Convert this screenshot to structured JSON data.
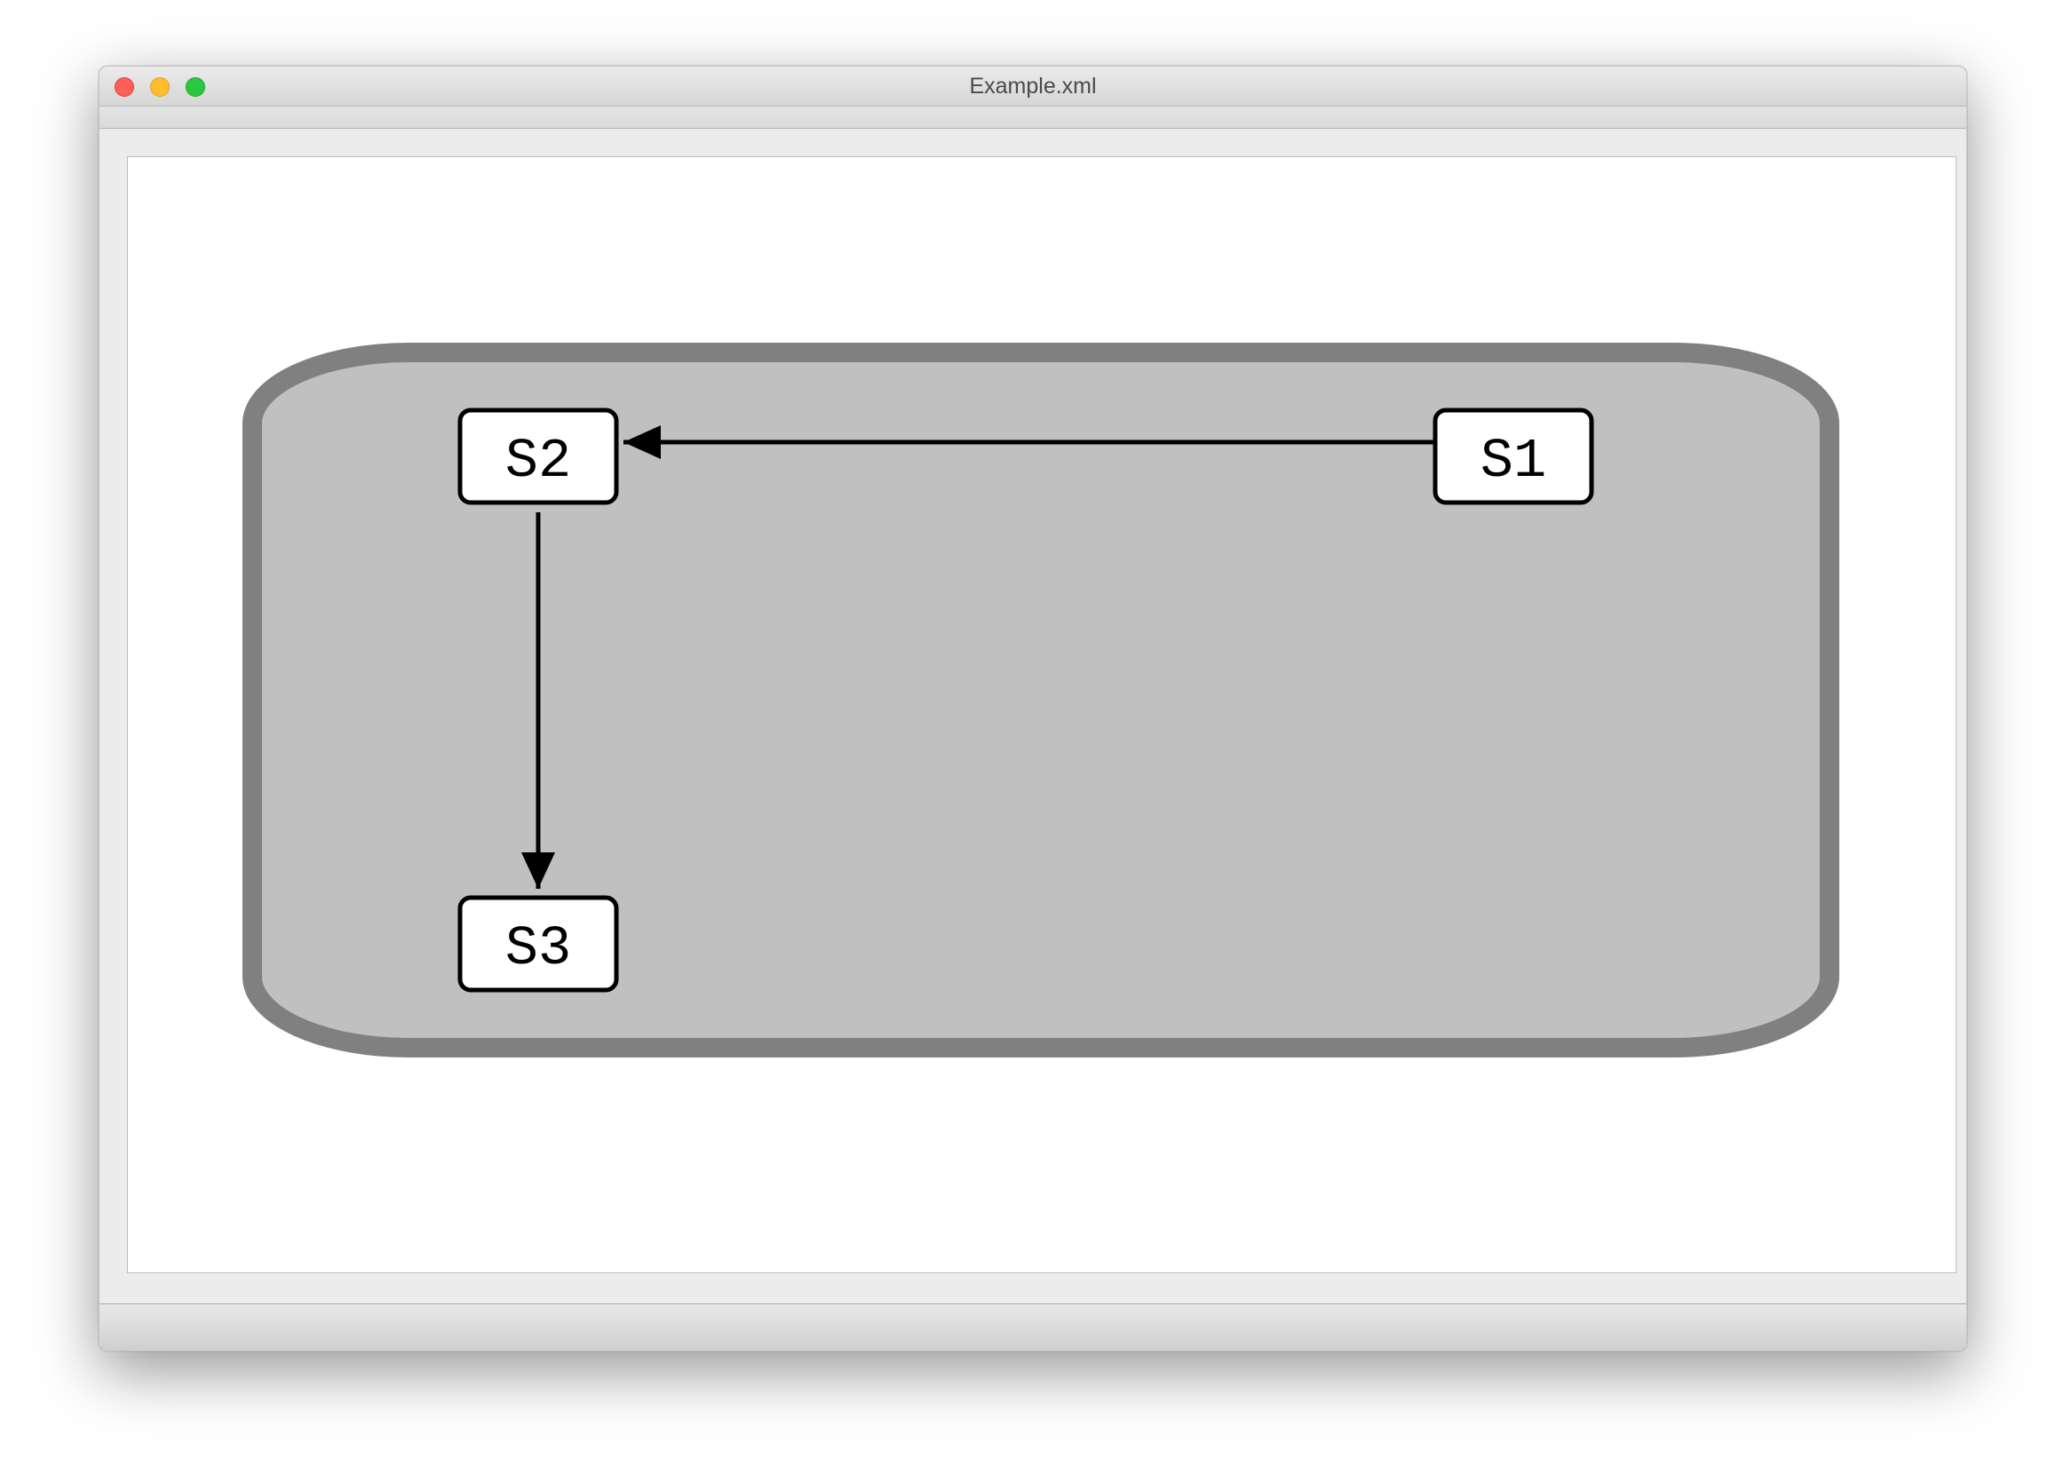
{
  "window": {
    "title": "Example.xml"
  },
  "diagram": {
    "container_fill": "#c0c0c0",
    "container_stroke": "#808080",
    "states": [
      {
        "id": "s1",
        "label": "S1"
      },
      {
        "id": "s2",
        "label": "S2"
      },
      {
        "id": "s3",
        "label": "S3"
      }
    ],
    "transitions": [
      {
        "from": "S1",
        "to": "S2"
      },
      {
        "from": "S2",
        "to": "S3"
      }
    ]
  }
}
